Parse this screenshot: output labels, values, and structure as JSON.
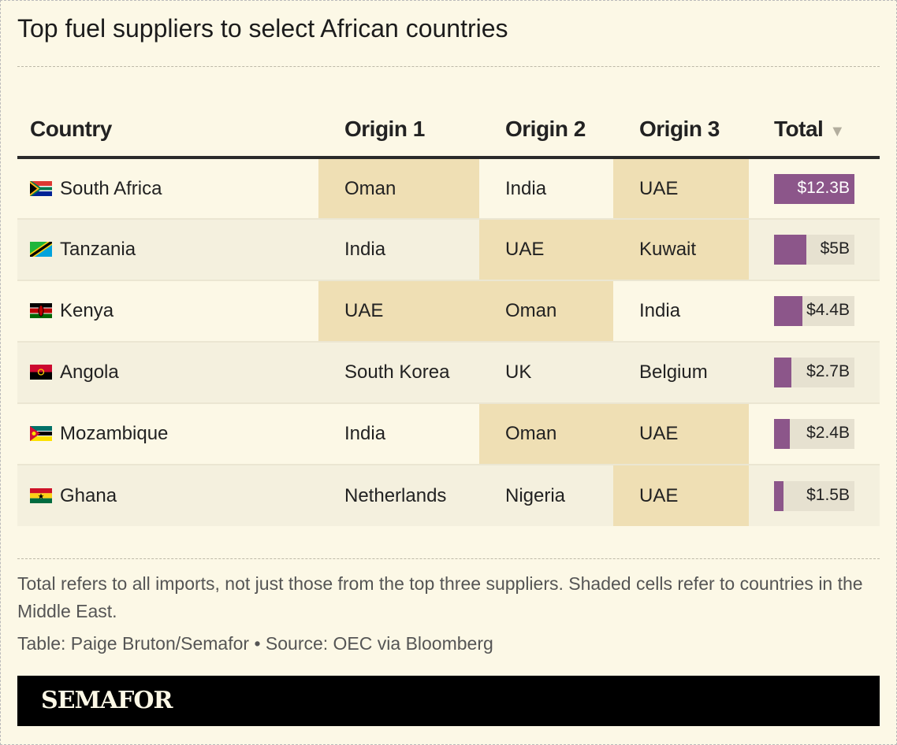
{
  "title": "Top fuel suppliers to select African countries",
  "headers": {
    "country": "Country",
    "origin1": "Origin 1",
    "origin2": "Origin 2",
    "origin3": "Origin 3",
    "total": "Total",
    "sort_icon": "▼"
  },
  "colors": {
    "middle_east_shade": "#efdfb4",
    "bar": "#8c568a"
  },
  "max_total": 12.3,
  "rows": [
    {
      "country": "South Africa",
      "flag": "za",
      "o1": "Oman",
      "o2": "India",
      "o3": "UAE",
      "me": [
        true,
        false,
        true
      ],
      "total": 12.3,
      "total_label": "$12.3B"
    },
    {
      "country": "Tanzania",
      "flag": "tz",
      "o1": "India",
      "o2": "UAE",
      "o3": "Kuwait",
      "me": [
        false,
        true,
        true
      ],
      "total": 5,
      "total_label": "$5B"
    },
    {
      "country": "Kenya",
      "flag": "ke",
      "o1": "UAE",
      "o2": "Oman",
      "o3": "India",
      "me": [
        true,
        true,
        false
      ],
      "total": 4.4,
      "total_label": "$4.4B"
    },
    {
      "country": "Angola",
      "flag": "ao",
      "o1": "South Korea",
      "o2": "UK",
      "o3": "Belgium",
      "me": [
        false,
        false,
        false
      ],
      "total": 2.7,
      "total_label": "$2.7B"
    },
    {
      "country": "Mozambique",
      "flag": "mz",
      "o1": "India",
      "o2": "Oman",
      "o3": "UAE",
      "me": [
        false,
        true,
        true
      ],
      "total": 2.4,
      "total_label": "$2.4B"
    },
    {
      "country": "Ghana",
      "flag": "gh",
      "o1": "Netherlands",
      "o2": "Nigeria",
      "o3": "UAE",
      "me": [
        false,
        false,
        true
      ],
      "total": 1.5,
      "total_label": "$1.5B"
    }
  ],
  "note": "Total refers to all imports, not just those from the top three suppliers. Shaded cells refer to countries in the Middle East.",
  "credit": "Table: Paige Bruton/Semafor • Source: OEC via Bloomberg",
  "logo": "SEMAFOR"
}
